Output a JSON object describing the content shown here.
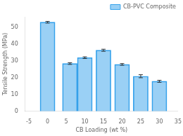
{
  "chart_data": {
    "type": "bar",
    "xlabel": "CB Loading (wt %)",
    "ylabel": "Tensile Strength (MPa)",
    "x": [
      0,
      6,
      10,
      15,
      20,
      25,
      30
    ],
    "series": [
      {
        "name": "CB-PVC Composite",
        "values": [
          52.8,
          28.3,
          31.8,
          36.2,
          27.8,
          20.8,
          17.8
        ],
        "errors": [
          0.5,
          0.5,
          0.5,
          0.6,
          0.5,
          0.9,
          0.6
        ]
      }
    ],
    "xlim": [
      -6,
      35
    ],
    "xticks": [
      -5,
      0,
      5,
      10,
      15,
      20,
      25,
      30,
      35
    ],
    "ylim": [
      0,
      56
    ],
    "yticks": [
      0,
      10,
      20,
      30,
      40,
      50
    ],
    "legend": "upper right",
    "grid": false
  }
}
